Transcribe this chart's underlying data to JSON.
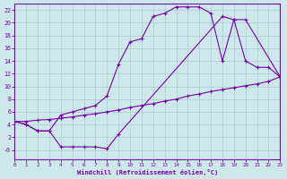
{
  "xlabel": "Windchill (Refroidissement éolien,°C)",
  "bg_color": "#cce8ea",
  "grid_color": "#aacccc",
  "line_color": "#7700aa",
  "spine_color": "#7700aa",
  "xmin": 0,
  "xmax": 23,
  "ymin": -1.5,
  "ymax": 23,
  "yticks": [
    0,
    2,
    4,
    6,
    8,
    10,
    12,
    14,
    16,
    18,
    20,
    22
  ],
  "ytick_labels": [
    "-0",
    "2",
    "4",
    "6",
    "8",
    "10",
    "12",
    "14",
    "16",
    "18",
    "20",
    "22"
  ],
  "xticks": [
    0,
    1,
    2,
    3,
    4,
    5,
    6,
    7,
    8,
    9,
    10,
    11,
    12,
    13,
    14,
    15,
    16,
    17,
    18,
    19,
    20,
    21,
    22,
    23
  ],
  "curve1_x": [
    0,
    1,
    2,
    3,
    4,
    5,
    6,
    7,
    8,
    9,
    10,
    11,
    12,
    13,
    14,
    15,
    16,
    17,
    18,
    19,
    20,
    21,
    22,
    23
  ],
  "curve1_y": [
    4.5,
    4.0,
    3.0,
    3.0,
    5.5,
    6.0,
    6.5,
    7.0,
    8.5,
    13.5,
    17.0,
    17.5,
    21.0,
    21.5,
    22.5,
    22.5,
    22.5,
    21.5,
    14.0,
    20.5,
    14.0,
    13.0,
    13.0,
    11.5
  ],
  "curve2_x": [
    0,
    1,
    2,
    3,
    4,
    5,
    6,
    7,
    8,
    9,
    18,
    19,
    20,
    23
  ],
  "curve2_y": [
    4.5,
    4.0,
    3.0,
    3.0,
    0.5,
    0.5,
    0.5,
    0.5,
    0.2,
    2.5,
    21.0,
    20.5,
    20.5,
    11.5
  ],
  "curve3_x": [
    0,
    1,
    2,
    3,
    4,
    5,
    6,
    7,
    8,
    9,
    10,
    11,
    12,
    13,
    14,
    15,
    16,
    17,
    18,
    19,
    20,
    21,
    22,
    23
  ],
  "curve3_y": [
    4.5,
    4.5,
    4.7,
    4.8,
    5.0,
    5.2,
    5.5,
    5.7,
    6.0,
    6.3,
    6.7,
    7.0,
    7.3,
    7.7,
    8.0,
    8.5,
    8.8,
    9.2,
    9.5,
    9.8,
    10.1,
    10.4,
    10.8,
    11.5
  ]
}
